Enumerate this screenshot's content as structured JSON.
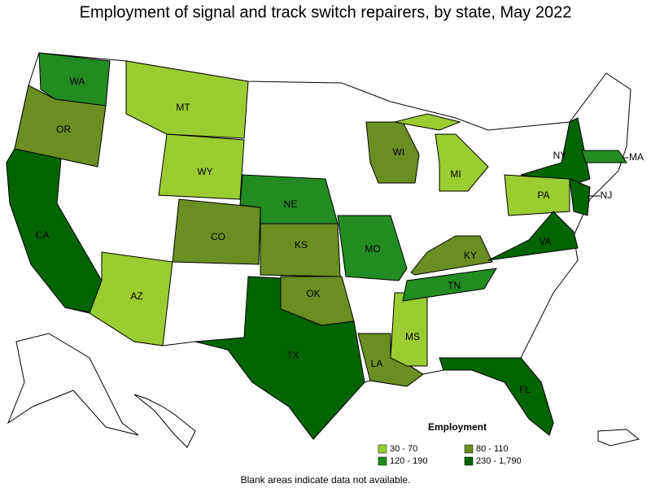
{
  "title": "Employment of signal and track switch repairers, by state, May 2022",
  "legend": {
    "title": "Employment",
    "items": [
      {
        "label": "30 - 70",
        "color": "#9acd32"
      },
      {
        "label": "80 - 110",
        "color": "#6b8e23"
      },
      {
        "label": "120 - 190",
        "color": "#228b22"
      },
      {
        "label": "230 - 1,790",
        "color": "#006400"
      }
    ]
  },
  "states": [
    {
      "abbr": "WA",
      "color": "#228b22"
    },
    {
      "abbr": "OR",
      "color": "#6b8e23"
    },
    {
      "abbr": "CA",
      "color": "#006400"
    },
    {
      "abbr": "MT",
      "color": "#9acd32"
    },
    {
      "abbr": "WY",
      "color": "#9acd32"
    },
    {
      "abbr": "CO",
      "color": "#6b8e23"
    },
    {
      "abbr": "AZ",
      "color": "#9acd32"
    },
    {
      "abbr": "NE",
      "color": "#228b22"
    },
    {
      "abbr": "KS",
      "color": "#6b8e23"
    },
    {
      "abbr": "OK",
      "color": "#6b8e23"
    },
    {
      "abbr": "TX",
      "color": "#006400"
    },
    {
      "abbr": "MO",
      "color": "#228b22"
    },
    {
      "abbr": "LA",
      "color": "#6b8e23"
    },
    {
      "abbr": "MS",
      "color": "#9acd32"
    },
    {
      "abbr": "TN",
      "color": "#228b22"
    },
    {
      "abbr": "KY",
      "color": "#6b8e23"
    },
    {
      "abbr": "WI",
      "color": "#6b8e23"
    },
    {
      "abbr": "MI",
      "color": "#9acd32"
    },
    {
      "abbr": "NY",
      "color": "#006400"
    },
    {
      "abbr": "PA",
      "color": "#9acd32"
    },
    {
      "abbr": "NJ",
      "color": "#006400"
    },
    {
      "abbr": "VA",
      "color": "#006400"
    },
    {
      "abbr": "FL",
      "color": "#006400"
    },
    {
      "abbr": "MA",
      "color": "#228b22"
    }
  ],
  "footnote": "Blank areas indicate data not available."
}
